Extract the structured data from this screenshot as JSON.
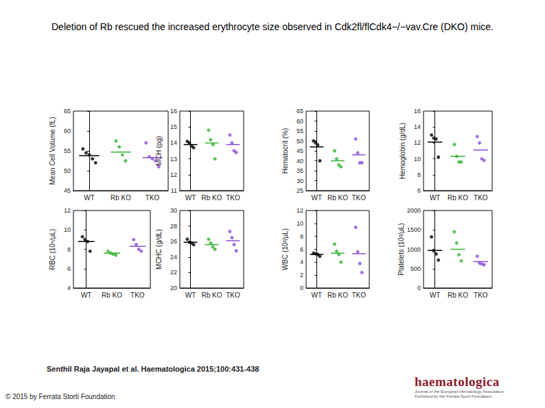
{
  "title": "Deletion of Rb rescued the increased erythrocyte size observed in Cdk2fl/flCdk4−/−vav.Cre (DKO) mice.",
  "chart_data": [
    {
      "type": "scatter",
      "ylabel": "Mean Cell Volume (fL)",
      "categories": [
        "WT",
        "Rb KO",
        "TKO"
      ],
      "colors": [
        "#000000",
        "#33b233",
        "#8a4fd6"
      ],
      "values": [
        [
          55.5,
          54.5,
          54,
          53,
          52
        ],
        [
          57.5,
          56,
          54,
          52.5
        ],
        [
          57,
          53.5,
          53,
          52.5,
          51
        ]
      ],
      "means": [
        53.8,
        54.7,
        53.3
      ],
      "ylim": [
        45,
        65
      ],
      "yticks": [
        45,
        50,
        55,
        60,
        65
      ]
    },
    {
      "type": "scatter",
      "ylabel": "MCH (pg)",
      "categories": [
        "WT",
        "Rb KO",
        "TKO"
      ],
      "colors": [
        "#000000",
        "#33b233",
        "#8a4fd6"
      ],
      "values": [
        [
          14.1,
          14.0,
          13.8,
          13.7
        ],
        [
          14.8,
          14.2,
          13.9,
          13.0
        ],
        [
          14.5,
          14.0,
          13.5,
          13.4
        ]
      ],
      "means": [
        13.9,
        14.0,
        13.9
      ],
      "ylim": [
        11,
        16
      ],
      "yticks": [
        11,
        12,
        13,
        14,
        15,
        16
      ]
    },
    {
      "type": "scatter",
      "ylabel": "Hematocrit (%)",
      "categories": [
        "WT",
        "Rb KO",
        "TKO"
      ],
      "colors": [
        "#000000",
        "#33b233",
        "#8a4fd6"
      ],
      "values": [
        [
          50,
          49,
          48,
          40
        ],
        [
          45,
          41,
          38,
          37
        ],
        [
          51,
          44,
          39,
          39
        ]
      ],
      "means": [
        47,
        40,
        43
      ],
      "ylim": [
        25,
        65
      ],
      "yticks": [
        25,
        30,
        35,
        40,
        45,
        50,
        55,
        60,
        65
      ]
    },
    {
      "type": "scatter",
      "ylabel": "Hemoglobin (g/dL)",
      "categories": [
        "WT",
        "Rb KO",
        "TKO"
      ],
      "colors": [
        "#000000",
        "#33b233",
        "#8a4fd6"
      ],
      "values": [
        [
          13,
          12.6,
          12.5,
          10.2
        ],
        [
          11.8,
          10.3,
          9.6,
          9.6
        ],
        [
          12.8,
          12,
          10,
          9.8
        ]
      ],
      "means": [
        12.1,
        10.3,
        11.1
      ],
      "ylim": [
        6,
        16
      ],
      "yticks": [
        6,
        8,
        10,
        12,
        14,
        16
      ]
    },
    {
      "type": "scatter",
      "ylabel": "RBC (10⁶/µL)",
      "categories": [
        "WT",
        "Rb KO",
        "TKO"
      ],
      "colors": [
        "#000000",
        "#33b233",
        "#8a4fd6"
      ],
      "values": [
        [
          9.3,
          9.0,
          8.8,
          7.8
        ],
        [
          7.8,
          7.6,
          7.5,
          7.4
        ],
        [
          9.0,
          8.5,
          8.0,
          7.8
        ]
      ],
      "means": [
        8.8,
        7.6,
        8.3
      ],
      "ylim": [
        4,
        12
      ],
      "yticks": [
        4,
        6,
        8,
        10,
        12
      ]
    },
    {
      "type": "scatter",
      "ylabel": "MCHC (g/dL)",
      "categories": [
        "WT",
        "Rb KO",
        "TKO"
      ],
      "colors": [
        "#000000",
        "#33b233",
        "#8a4fd6"
      ],
      "values": [
        [
          26.3,
          25.9,
          25.8,
          25.6
        ],
        [
          26.3,
          25.8,
          25.3,
          25.0
        ],
        [
          27.3,
          26.5,
          25.6,
          24.8
        ]
      ],
      "means": [
        25.9,
        25.6,
        26.1
      ],
      "ylim": [
        20,
        30
      ],
      "yticks": [
        20,
        22,
        24,
        26,
        28,
        30
      ]
    },
    {
      "type": "scatter",
      "ylabel": "WBC (10³/µL)",
      "categories": [
        "WT",
        "Rb KO",
        "TKO"
      ],
      "colors": [
        "#000000",
        "#33b233",
        "#8a4fd6"
      ],
      "values": [
        [
          5.4,
          5.3,
          5.2,
          4.9
        ],
        [
          6.8,
          5.7,
          5.2,
          4.0
        ],
        [
          9.4,
          5.6,
          3.8,
          2.4
        ]
      ],
      "means": [
        5.2,
        5.4,
        5.3
      ],
      "ylim": [
        0,
        12
      ],
      "yticks": [
        0,
        2,
        4,
        6,
        8,
        10,
        12
      ]
    },
    {
      "type": "scatter",
      "ylabel": "Platelets (10³/µL)",
      "categories": [
        "WT",
        "Rb KO",
        "TKO"
      ],
      "colors": [
        "#000000",
        "#33b233",
        "#8a4fd6"
      ],
      "values": [
        [
          1320,
          960,
          880,
          720
        ],
        [
          1450,
          1160,
          860,
          700
        ],
        [
          820,
          640,
          620,
          600
        ]
      ],
      "means": [
        970,
        1000,
        680
      ],
      "ylim": [
        0,
        2000
      ],
      "yticks": [
        0,
        500,
        1000,
        1500,
        2000
      ]
    }
  ],
  "citation": "Senthil Raja Jayapal et al. Haematologica 2015;100:431-438",
  "copyright": "© 2015 by Ferrata Storti Foundation",
  "logo": {
    "name": "haematologica",
    "subtitle": [
      "Journal of the European Hematology Association",
      "Published by the Ferrata Storti Foundation"
    ]
  }
}
